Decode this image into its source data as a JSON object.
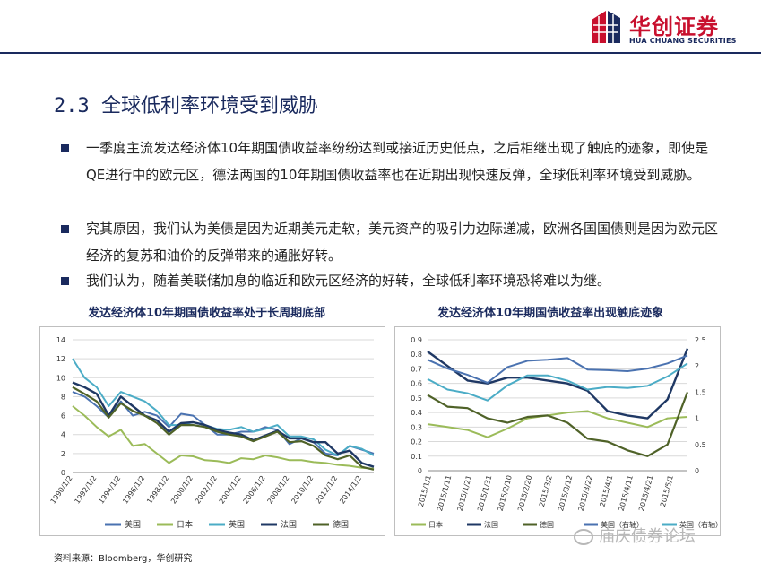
{
  "header": {
    "logo_cn": "华创证券",
    "logo_en": "HUA CHUANG SECURITIES"
  },
  "section_title": "2.3 全球低利率环境受到威胁",
  "bullets": [
    "一季度主流发达经济体10年期国债收益率纷纷达到或接近历史低点，之后相继出现了触底的迹象，即使是QE进行中的欧元区，德法两国的10年期国债收益率也在近期出现快速反弹，全球低利率环境受到威胁。",
    "究其原因，我们认为美债是因为近期美元走软，美元资产的吸引力边际递减，欧洲各国国债则是因为欧元区经济的复苏和油价的反弹带来的通胀好转。",
    "我们认为，随着美联储加息的临近和欧元区经济的好转，全球低利率环境恐将难以为继。"
  ],
  "source": "资料来源：Bloomberg，华创研究",
  "watermark": "庙庆债券论坛",
  "colors": {
    "brand_red": "#c8102e",
    "brand_navy": "#1a2a5e",
    "us": "#4a72b0",
    "jp": "#9bbb59",
    "uk": "#4bacc6",
    "fr": "#1f3864",
    "de": "#4f6228"
  },
  "chart_data": [
    {
      "type": "line",
      "title": "发达经济体10年期国债收益率处于长周期底部",
      "ylim": [
        0,
        14
      ],
      "yticks": [
        "0",
        "2",
        "4",
        "6",
        "8",
        "10",
        "12",
        "14"
      ],
      "xticks": [
        "1990/1/2",
        "1992/1/2",
        "1994/1/2",
        "1996/1/2",
        "1998/1/2",
        "2000/1/2",
        "2002/1/2",
        "2004/1/2",
        "2006/1/2",
        "2008/1/2",
        "2010/1/2",
        "2012/1/2",
        "2014/1/2"
      ],
      "x": [
        1990,
        1991,
        1992,
        1993,
        1994,
        1995,
        1996,
        1997,
        1998,
        1999,
        2000,
        2001,
        2002,
        2003,
        2004,
        2005,
        2006,
        2007,
        2008,
        2009,
        2010,
        2011,
        2012,
        2013,
        2014,
        2015
      ],
      "grid": true,
      "legend": "bottom",
      "series": [
        {
          "name": "美国",
          "values": [
            8.5,
            8.0,
            7.0,
            5.8,
            7.5,
            6.0,
            6.4,
            6.0,
            4.8,
            6.2,
            6.0,
            5.0,
            4.0,
            4.0,
            4.3,
            4.3,
            4.8,
            4.5,
            3.0,
            3.6,
            3.2,
            2.0,
            1.8,
            2.8,
            2.4,
            2.0
          ]
        },
        {
          "name": "日本",
          "values": [
            7.0,
            6.0,
            4.8,
            3.8,
            4.5,
            2.8,
            3.0,
            2.0,
            1.0,
            1.8,
            1.7,
            1.3,
            1.2,
            1.0,
            1.5,
            1.4,
            1.8,
            1.6,
            1.3,
            1.3,
            1.1,
            1.0,
            0.8,
            0.7,
            0.5,
            0.4
          ]
        },
        {
          "name": "英国",
          "values": [
            12.0,
            10.0,
            9.0,
            7.0,
            8.5,
            8.0,
            7.5,
            6.5,
            5.0,
            5.0,
            5.3,
            5.0,
            4.6,
            4.5,
            4.8,
            4.3,
            4.6,
            5.0,
            3.8,
            3.8,
            3.5,
            2.4,
            1.8,
            2.8,
            2.5,
            1.8
          ]
        },
        {
          "name": "法国",
          "values": [
            9.5,
            9.0,
            8.3,
            6.0,
            8.0,
            7.0,
            6.0,
            5.5,
            4.3,
            5.2,
            5.3,
            5.0,
            4.5,
            4.2,
            4.0,
            3.4,
            3.9,
            4.4,
            3.6,
            3.6,
            3.2,
            3.2,
            2.0,
            2.3,
            1.0,
            0.6
          ]
        },
        {
          "name": "德国",
          "values": [
            9.0,
            8.3,
            7.5,
            5.8,
            7.3,
            6.5,
            6.0,
            5.2,
            4.0,
            5.0,
            5.0,
            4.8,
            4.3,
            4.0,
            3.8,
            3.3,
            3.8,
            4.3,
            3.2,
            3.3,
            2.8,
            1.8,
            1.4,
            1.8,
            0.6,
            0.3
          ]
        }
      ]
    },
    {
      "type": "line",
      "title": "发达经济体10年期国债收益率出现触底迹象",
      "ylim_left": [
        0,
        0.9
      ],
      "ylim_right": [
        0,
        2.5
      ],
      "yticks_left": [
        "0",
        "0.1",
        "0.2",
        "0.3",
        "0.4",
        "0.5",
        "0.6",
        "0.7",
        "0.8",
        "0.9"
      ],
      "yticks_right": [
        "0",
        "0.5",
        "1",
        "1.5",
        "2",
        "2.5"
      ],
      "xticks": [
        "2015/1/1",
        "2015/1/11",
        "2015/1/21",
        "2015/1/31",
        "2015/2/10",
        "2015/2/20",
        "2015/3/2",
        "2015/3/12",
        "2015/3/22",
        "2015/4/1",
        "2015/4/11",
        "2015/4/21",
        "2015/5/1"
      ],
      "grid": true,
      "legend": "bottom",
      "series": [
        {
          "name": "日本",
          "axis": "left",
          "values": [
            0.32,
            0.3,
            0.28,
            0.23,
            0.29,
            0.36,
            0.38,
            0.4,
            0.41,
            0.36,
            0.33,
            0.3,
            0.36,
            0.37
          ]
        },
        {
          "name": "法国",
          "axis": "left",
          "values": [
            0.82,
            0.72,
            0.62,
            0.6,
            0.64,
            0.64,
            0.62,
            0.6,
            0.55,
            0.41,
            0.38,
            0.36,
            0.49,
            0.84
          ]
        },
        {
          "name": "德国",
          "axis": "left",
          "values": [
            0.52,
            0.44,
            0.43,
            0.36,
            0.33,
            0.37,
            0.38,
            0.33,
            0.22,
            0.2,
            0.14,
            0.1,
            0.18,
            0.54
          ]
        },
        {
          "name": "美国（右轴）",
          "axis": "right",
          "values": [
            2.12,
            1.95,
            1.83,
            1.68,
            1.98,
            2.1,
            2.12,
            2.15,
            1.93,
            1.92,
            1.9,
            1.95,
            2.05,
            2.2
          ]
        },
        {
          "name": "英国（右轴）",
          "axis": "right",
          "values": [
            1.75,
            1.55,
            1.48,
            1.34,
            1.63,
            1.82,
            1.82,
            1.72,
            1.55,
            1.6,
            1.58,
            1.62,
            1.8,
            2.05
          ]
        }
      ]
    }
  ]
}
